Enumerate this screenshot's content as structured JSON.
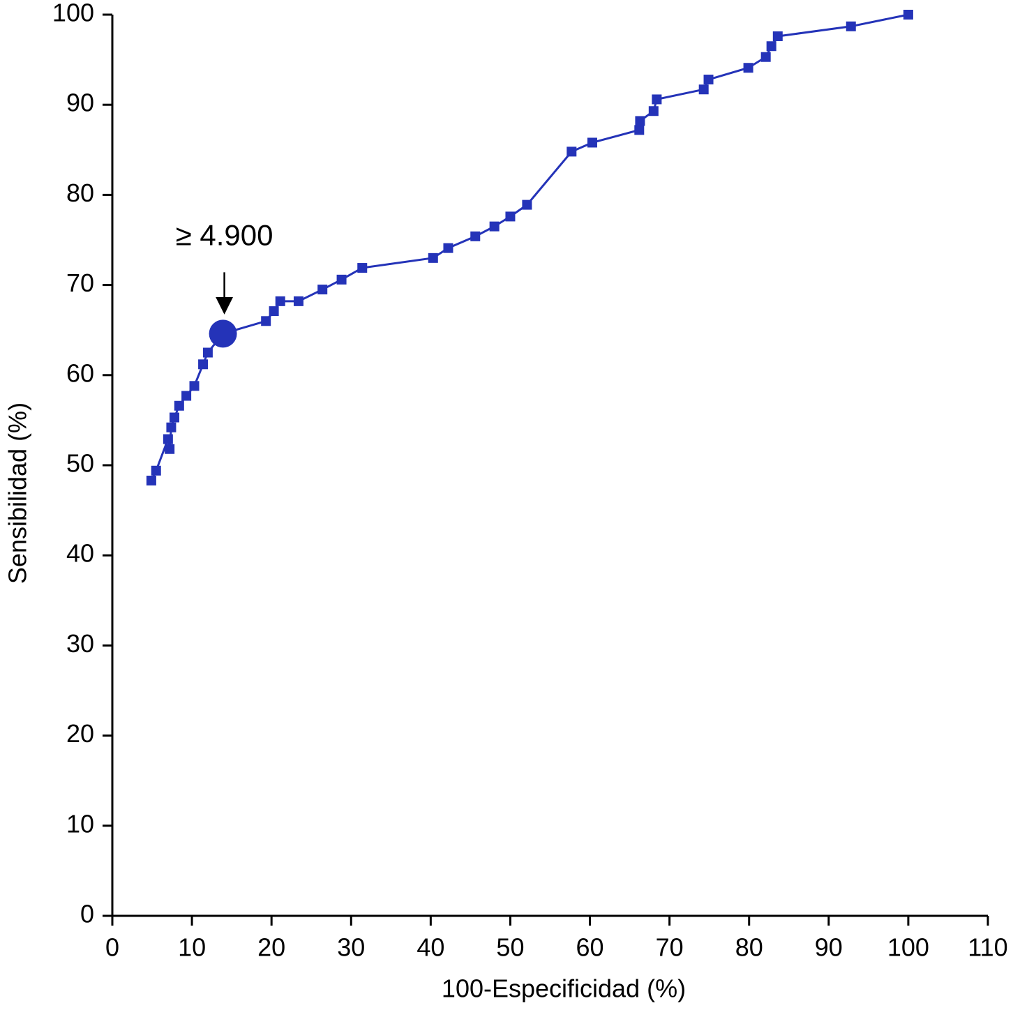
{
  "chart_data": {
    "type": "line",
    "xlabel": "100-Especificidad (%)",
    "ylabel": "Sensibilidad (%)",
    "color": "#2433b8",
    "x": [
      4.9,
      5.5,
      7.0,
      7.2,
      7.4,
      7.8,
      8.4,
      9.3,
      10.3,
      11.4,
      12.0,
      13.9,
      19.3,
      20.3,
      21.1,
      23.4,
      26.4,
      28.8,
      31.4,
      40.3,
      42.2,
      45.6,
      48.0,
      50.0,
      52.1,
      57.7,
      60.3,
      66.2,
      66.3,
      68.0,
      68.4,
      74.3,
      74.9,
      79.9,
      82.1,
      82.8,
      83.6,
      92.8,
      100
    ],
    "values": [
      48.3,
      49.4,
      52.9,
      51.8,
      54.2,
      55.3,
      56.6,
      57.7,
      58.8,
      61.2,
      62.5,
      64.6,
      66.0,
      67.1,
      68.2,
      68.2,
      69.5,
      70.6,
      71.9,
      73.0,
      74.1,
      75.4,
      76.5,
      77.6,
      78.9,
      84.8,
      85.8,
      87.2,
      88.2,
      89.3,
      90.6,
      91.7,
      92.8,
      94.1,
      95.3,
      96.5,
      97.6,
      98.7,
      100
    ],
    "annotation": {
      "text": "≥ 4.900",
      "x": 13.9,
      "y": 64.6
    },
    "xlim": [
      0,
      110
    ],
    "xticks": [
      0,
      10,
      20,
      30,
      40,
      50,
      60,
      70,
      80,
      90,
      100,
      110
    ],
    "ylim": [
      0,
      100
    ],
    "yticks": [
      0,
      10,
      20,
      30,
      40,
      50,
      60,
      70,
      80,
      90,
      100
    ]
  }
}
